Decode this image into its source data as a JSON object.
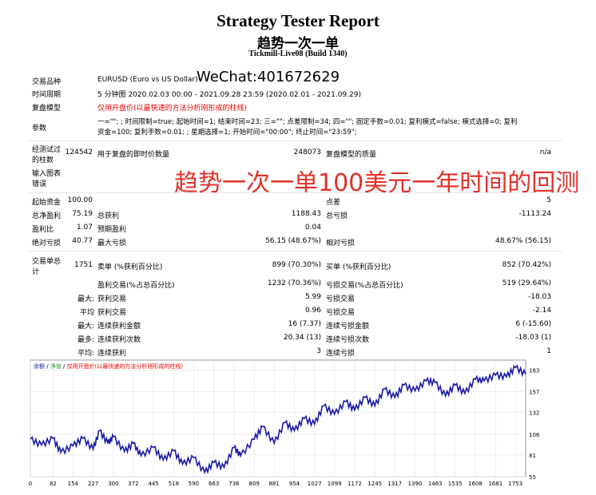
{
  "header": {
    "title": "Strategy Tester Report",
    "subtitle": "趋势一次一单",
    "server": "Tickmill-Live08 (Build 1340)"
  },
  "overlay": {
    "wechat": "WeChat:401672629",
    "headline": "趋势一次一单100美元一年时间的回测"
  },
  "info": {
    "symbol_label": "交易品种",
    "symbol_value": "EURUSD (Euro vs US Dollar)",
    "period_label": "时间周期",
    "period_value": "5 分钟图 2020.02.03 00:00 - 2021.09.28 23:59 (2020.02.01 - 2021.09.29)",
    "model_label": "复盘模型",
    "model_value": "仅用开盘价(以最快速的方法分析刚形成的柱线)",
    "params_label": "参数",
    "params_line1": "一=\"\"; ; 时间限制=true; 起始时间=1; 结束时间=23; 三=\"\"; 点差限制=34; 四=\"\"; 固定手数=0.01; 复利模式=false; 模式选择=0; 复利",
    "params_line2": "资金=100; 复利手数=0.01; ; 星期选择=1; 开始时间=\"00:00\"; 终止时间=\"23:59\";",
    "bars_label1": "经测试过",
    "bars_label2": "的柱数",
    "bars_value": "124542",
    "ticks_label": "用于复盘的即时价数量",
    "ticks_value": "248073",
    "quality_label": "复盘模型的质量",
    "quality_value": "n/a",
    "errors_label1": "输入图表",
    "errors_label2": "错误"
  },
  "stats": {
    "deposit_label": "起始资金",
    "deposit_value": "100.00",
    "spread_label": "点差",
    "spread_value": "5",
    "net_label": "总净盈利",
    "net_value": "75.19",
    "gross_profit_label": "总获利",
    "gross_profit_value": "1188.43",
    "gross_loss_label": "总亏损",
    "gross_loss_value": "-1113.24",
    "pf_label": "盈利比",
    "pf_value": "1.07",
    "exp_label": "预期盈利",
    "exp_value": "0.04",
    "abs_dd_label": "绝对亏损",
    "abs_dd_value": "40.77",
    "max_dd_label": "最大亏损",
    "max_dd_value": "56.15 (48.67%)",
    "rel_dd_label": "相对亏损",
    "rel_dd_value": "48.67% (56.15)",
    "trades_label1": "交易单总",
    "trades_label2": "计",
    "trades_value": "1751",
    "short_label": "卖单 (%获利百分比)",
    "short_value": "899 (70.30%)",
    "long_label": "买单 (%获利百分比)",
    "long_value": "852 (70.42%)",
    "win_label": "盈利交易(%占总百分比)",
    "win_value": "1232 (70.36%)",
    "lose_label": "亏损交易(%占总百分比)",
    "lose_value": "519 (29.64%)",
    "max1": "最大:",
    "max_win_label": "获利交易",
    "max_win_value": "5.99",
    "max_lose_label": "亏损交易",
    "max_lose_value": "-18.03",
    "avg1": "平均",
    "avg_win_label": "获利交易",
    "avg_win_value": "0.96",
    "avg_lose_label": "亏损交易",
    "avg_lose_value": "-2.14",
    "max2": "最大:",
    "cons_win_amt_label": "连续获利金额",
    "cons_win_amt_value": "16 (7.37)",
    "cons_loss_amt_label": "连续亏损金额",
    "cons_loss_amt_value": "6 (-15.60)",
    "max3": "最多:",
    "cons_win_cnt_label": "连续获利次数",
    "cons_win_cnt_value": "20.34 (13)",
    "cons_loss_cnt_label": "连续亏损次数",
    "cons_loss_cnt_value": "-18.03 (1)",
    "avg2": "平均:",
    "avg_cons_win_label": "连续获利",
    "avg_cons_win_value": "3",
    "avg_cons_loss_label": "连续亏损",
    "avg_cons_loss_value": "1"
  },
  "chart_data": {
    "type": "line",
    "legend_text": "余额 / 净值 / 仅用开盘价(以最快速的方法分析刚形成的柱线)",
    "legend_balance": "余额",
    "legend_sep1": " / ",
    "legend_equity": "净值",
    "legend_sep2": " / ",
    "legend_model": "仅用开盘价(以最快速的方法分析刚形成的柱线)",
    "line_color": "#1a1aa8",
    "grid": true,
    "xlim": [
      0,
      1790
    ],
    "ylim": [
      55,
      195
    ],
    "x_ticks": [
      "0",
      "82",
      "154",
      "227",
      "300",
      "372",
      "445",
      "518",
      "590",
      "663",
      "736",
      "809",
      "881",
      "954",
      "1027",
      "1099",
      "1172",
      "1245",
      "1317",
      "1390",
      "1463",
      "1535",
      "1608",
      "1681",
      "1753"
    ],
    "y_ticks": [
      "183",
      "157",
      "132",
      "106",
      "81",
      "55"
    ],
    "series": [
      {
        "values": [
          [
            0,
            100
          ],
          [
            40,
            93
          ],
          [
            82,
            101
          ],
          [
            110,
            84
          ],
          [
            154,
            92
          ],
          [
            190,
            101
          ],
          [
            227,
            88
          ],
          [
            250,
            110
          ],
          [
            280,
            95
          ],
          [
            300,
            103
          ],
          [
            340,
            85
          ],
          [
            372,
            95
          ],
          [
            400,
            80
          ],
          [
            445,
            90
          ],
          [
            480,
            75
          ],
          [
            518,
            86
          ],
          [
            550,
            70
          ],
          [
            590,
            78
          ],
          [
            630,
            60
          ],
          [
            663,
            72
          ],
          [
            700,
            66
          ],
          [
            736,
            90
          ],
          [
            760,
            80
          ],
          [
            809,
            100
          ],
          [
            840,
            115
          ],
          [
            881,
            95
          ],
          [
            920,
            120
          ],
          [
            954,
            110
          ],
          [
            990,
            125
          ],
          [
            1027,
            118
          ],
          [
            1060,
            140
          ],
          [
            1099,
            130
          ],
          [
            1140,
            145
          ],
          [
            1172,
            135
          ],
          [
            1210,
            150
          ],
          [
            1245,
            140
          ],
          [
            1280,
            160
          ],
          [
            1317,
            150
          ],
          [
            1350,
            165
          ],
          [
            1390,
            158
          ],
          [
            1430,
            170
          ],
          [
            1463,
            168
          ],
          [
            1500,
            152
          ],
          [
            1535,
            165
          ],
          [
            1570,
            155
          ],
          [
            1608,
            172
          ],
          [
            1640,
            170
          ],
          [
            1681,
            177
          ],
          [
            1720,
            175
          ],
          [
            1753,
            186
          ],
          [
            1790,
            178
          ]
        ]
      }
    ]
  }
}
